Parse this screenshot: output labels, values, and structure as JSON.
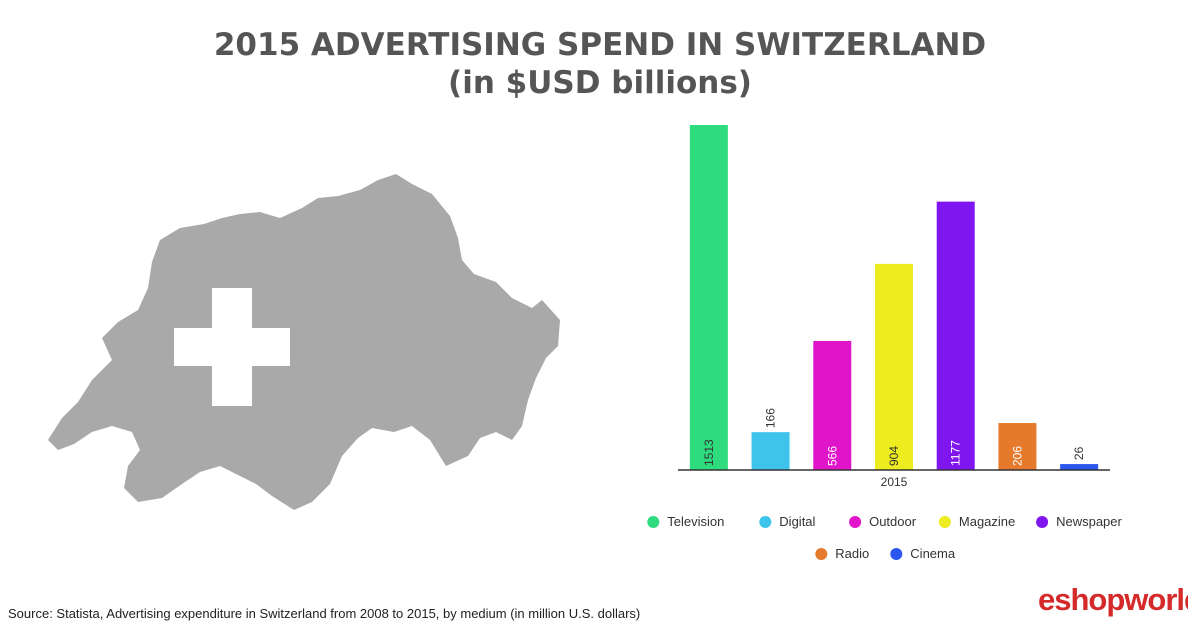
{
  "header": {
    "title_line1": "2015 ADVERTISING SPEND IN SWITZERLAND",
    "title_line2": "(in $USD billions)"
  },
  "source": "Source: Statista, Advertising expenditure in Switzerland from 2008 to 2015, by medium (in million U.S. dollars)",
  "logo": {
    "text": "eshopworld"
  },
  "map": {
    "fill_color": "#a9a9a9",
    "cross_color": "#ffffff"
  },
  "chart_data": {
    "type": "bar",
    "x_category": "2015",
    "categories": [
      "Television",
      "Digital",
      "Outdoor",
      "Magazine",
      "Newspaper",
      "Radio",
      "Cinema"
    ],
    "values": [
      1513,
      166,
      566,
      904,
      1177,
      206,
      26
    ],
    "colors": [
      "#2edc7e",
      "#3ec4ea",
      "#e015c9",
      "#ecec1e",
      "#7f16ef",
      "#e57a2c",
      "#2b57f0"
    ],
    "value_label_colors": [
      "#333333",
      "#333333",
      "#ffffff",
      "#333333",
      "#ffffff",
      "#ffffff",
      "#333333"
    ],
    "legend": {
      "rows": [
        [
          "Television",
          "Digital",
          "Outdoor",
          "Magazine",
          "Newspaper"
        ],
        [
          "Radio",
          "Cinema"
        ]
      ],
      "placement": "bottom"
    },
    "ylim": [
      0,
      1513
    ],
    "grid": false,
    "title": "",
    "xlabel": "",
    "ylabel": ""
  }
}
